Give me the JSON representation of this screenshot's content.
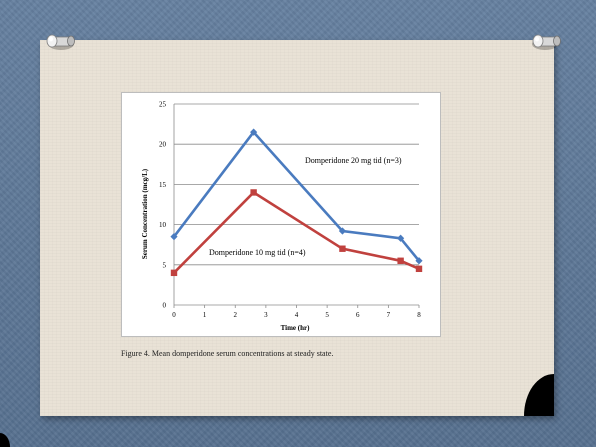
{
  "caption": "Figure 4. Mean domperidone serum concentrations at steady state.",
  "colors": {
    "blue_series": "#4a7bbf",
    "red_series": "#c0413e",
    "grid": "#8c8c8c"
  },
  "chart_data": {
    "type": "line",
    "title": "",
    "xlabel": "Time (hr)",
    "ylabel": "Serum Concentration (mcg/L)",
    "xlim": [
      0,
      8
    ],
    "ylim": [
      0,
      25
    ],
    "xticks": [
      "0",
      "1",
      "2",
      "3",
      "4",
      "5",
      "6",
      "7",
      "8"
    ],
    "yticks": [
      "0",
      "5",
      "10",
      "15",
      "20",
      "25"
    ],
    "grid": "horizontal",
    "series": [
      {
        "name": "Domperidone 20 mg tid (n=3)",
        "marker": "diamond",
        "color": "#4a7bbf",
        "x": [
          0,
          2.6,
          5.5,
          7.4,
          8
        ],
        "y": [
          8.5,
          21.5,
          9.2,
          8.3,
          5.5
        ]
      },
      {
        "name": "Domperidone 10 mg tid (n=4)",
        "marker": "square",
        "color": "#c0413e",
        "x": [
          0,
          2.6,
          5.5,
          7.4,
          8
        ],
        "y": [
          4,
          14,
          7,
          5.5,
          4.5
        ]
      }
    ]
  }
}
